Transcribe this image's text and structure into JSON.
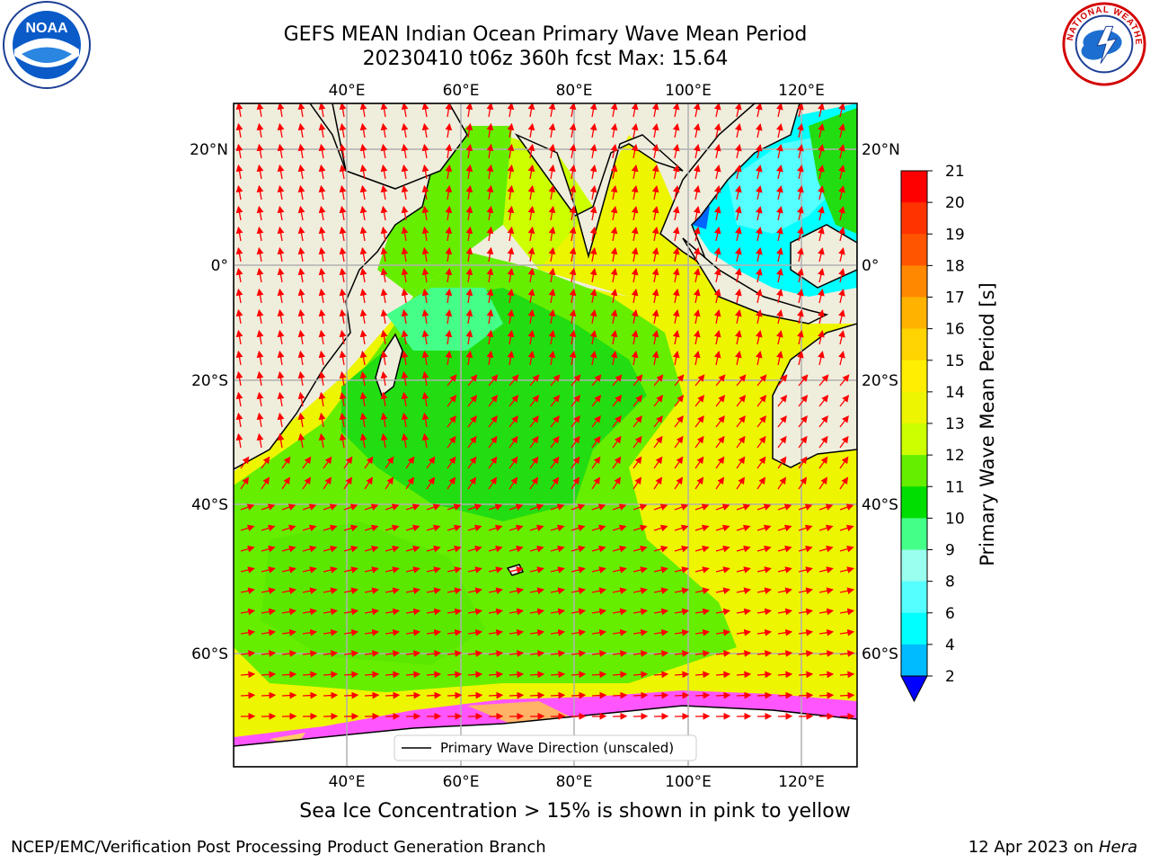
{
  "title": {
    "line1": "GEFS MEAN Indian Ocean Primary Wave Mean Period",
    "line2": "20230410 t06z 360h fcst   Max: 15.64"
  },
  "map": {
    "lon_ticks_top": [
      "40°E",
      "60°E",
      "80°E",
      "100°E",
      "120°E"
    ],
    "lon_ticks_bottom": [
      "40°E",
      "60°E",
      "80°E",
      "100°E",
      "120°E"
    ],
    "lat_ticks_left": [
      "20°N",
      "0°",
      "20°S",
      "40°S",
      "60°S"
    ],
    "lat_ticks_right": [
      "20°N",
      "0°",
      "20°S",
      "40°S",
      "60°S"
    ],
    "land_color": "#efeddc",
    "arrow_color": "#ff0000",
    "legend_label": "Primary Wave Direction (unscaled)"
  },
  "colorbar": {
    "label": "Primary Wave Mean Period [s]",
    "ticks": [
      "21",
      "20",
      "19",
      "18",
      "17",
      "16",
      "15",
      "14",
      "13",
      "12",
      "11",
      "10",
      "9",
      "8",
      "6",
      "4",
      "2"
    ],
    "colors": [
      "#ff0000",
      "#ff3300",
      "#ff5500",
      "#ff8800",
      "#ffb300",
      "#ffd400",
      "#ffee00",
      "#eef500",
      "#ccff00",
      "#66ee00",
      "#00dd00",
      "#44ff88",
      "#99ffee",
      "#55ffff",
      "#00ffff",
      "#00bbff",
      "#0066ff"
    ],
    "under_color": "#0000ff"
  },
  "ice_note": "Sea Ice Concentration > 15% is shown in pink to yellow",
  "footer": {
    "left": "NCEP/EMC/Verification Post Processing Product Generation Branch",
    "right_date": "12 Apr 2023 on ",
    "right_host": "Hera"
  },
  "logos": {
    "noaa_text": "NOAA",
    "noaa_icon": "noaa-logo-icon",
    "nws_text": "NATIONAL WEATHER SERVICE",
    "nws_icon": "nws-logo-icon"
  }
}
